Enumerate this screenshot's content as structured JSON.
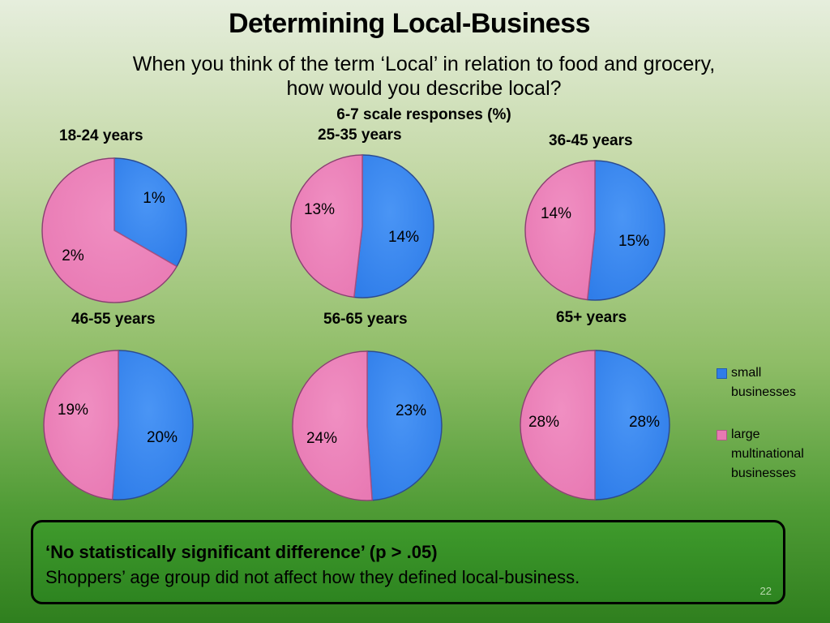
{
  "slide": {
    "title": "Determining Local-Business",
    "subtitle": "When you think of the term ‘Local’ in relation to food and grocery, how would you describe local?",
    "scale_note": "6-7 scale responses (%)",
    "note_heading": "‘No statistically significant difference’  (p > .05)",
    "note_text": "Shoppers’ age group did not affect how they defined local-business.",
    "page_number": "22"
  },
  "colors": {
    "small": "#2f7de9",
    "large": "#e879b3",
    "edge_small": "#2a5aa8",
    "edge_large": "#a84f80"
  },
  "chart_data": {
    "type": "pie",
    "series_names": [
      "small businesses",
      "large multinational businesses"
    ],
    "legend_position": "right",
    "charts": [
      {
        "title": "18-24 years",
        "values": [
          1,
          2
        ],
        "labels": [
          "1%",
          "2%"
        ]
      },
      {
        "title": "25-35 years",
        "values": [
          14,
          13
        ],
        "labels": [
          "14%",
          "13%"
        ]
      },
      {
        "title": "36-45 years",
        "values": [
          15,
          14
        ],
        "labels": [
          "15%",
          "14%"
        ]
      },
      {
        "title": "46-55 years",
        "values": [
          20,
          19
        ],
        "labels": [
          "20%",
          "19%"
        ]
      },
      {
        "title": "56-65 years",
        "values": [
          23,
          24
        ],
        "labels": [
          "23%",
          "24%"
        ]
      },
      {
        "title": "65+ years",
        "values": [
          28,
          28
        ],
        "labels": [
          "28%",
          "28%"
        ]
      }
    ]
  }
}
